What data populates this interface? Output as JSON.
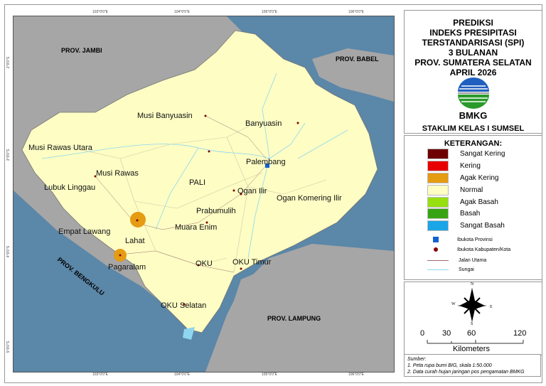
{
  "map": {
    "lon_ticks": [
      "103°0'0\"E",
      "104°0'0\"E",
      "105°0'0\"E",
      "106°0'0\"E"
    ],
    "lat_ticks": [
      "2°0'0\"S",
      "3°0'0\"S",
      "4°0'0\"S",
      "5°0'0\"S"
    ],
    "provinces": [
      "PROV. JAMBI",
      "PROV. BABEL",
      "PROV. BENGKULU",
      "PROV. LAMPUNG"
    ],
    "regencies": [
      "Musi Banyuasin",
      "Banyuasin",
      "Musi Rawas Utara",
      "Palembang",
      "Musi Rawas",
      "Lubuk Linggau",
      "PALI",
      "Ogan Ilir",
      "Ogan Komering Ilir",
      "Prabumulih",
      "Empat Lawang",
      "Muara Enim",
      "Lahat",
      "Pagaralam",
      "OKU",
      "OKU Timur",
      "OKU Selatan"
    ],
    "colors": {
      "sea": "#5b87a8",
      "other_land": "#a6a6a6",
      "province": "#fdfdc4",
      "agak_kering": "#e59b12"
    }
  },
  "title": {
    "lines": [
      "PREDIKSI",
      "INDEKS PRESIPITASI",
      "TERSTANDARISASI (SPI)",
      "3 BULANAN",
      "PROV. SUMATERA SELATAN",
      "APRIL 2026"
    ],
    "org": "BMKG",
    "office": "STAKLIM KELAS I SUMSEL"
  },
  "legend": {
    "heading": "KETERANGAN:",
    "classes": [
      {
        "label": "Sangat Kering",
        "color": "#6e0000"
      },
      {
        "label": "Kering",
        "color": "#e80000"
      },
      {
        "label": "Agak Kering",
        "color": "#e59b12"
      },
      {
        "label": "Normal",
        "color": "#fdfdc4"
      },
      {
        "label": "Agak Basah",
        "color": "#97e010"
      },
      {
        "label": "Basah",
        "color": "#38a312"
      },
      {
        "label": "Sangat Basah",
        "color": "#1aa5e6"
      }
    ],
    "symbols": [
      "Ibukota Provinsi",
      "Ibukota Kabupaten/Kota",
      "Jalan Utama",
      "Sungai"
    ]
  },
  "compass": {
    "n": "N",
    "s": "S",
    "e": "E",
    "w": "W"
  },
  "scale": {
    "ticks": [
      "0",
      "30",
      "60",
      "120"
    ],
    "unit": "Kilometers"
  },
  "source": {
    "heading": "Sumber:",
    "items": [
      "1. Peta rupa bumi BIG, skala 1:50.000",
      "2. Data curah hujan jaringan pos pengamatan BMKG"
    ]
  }
}
